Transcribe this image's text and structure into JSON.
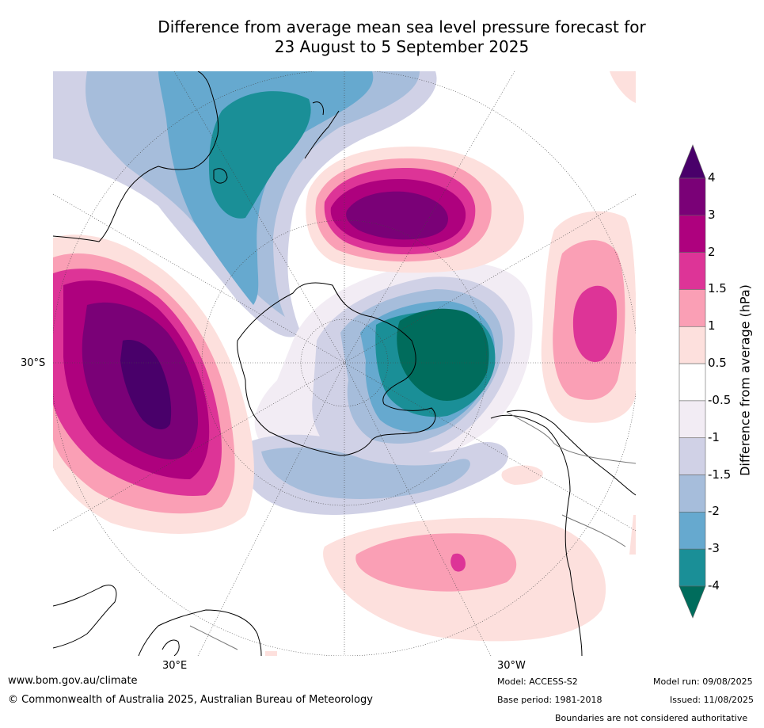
{
  "title": {
    "line1": "Difference from average mean sea level pressure forecast for",
    "line2": "23 August to 5 September 2025"
  },
  "map": {
    "projection": "south-polar-stereographic",
    "lat_label": "30°S",
    "lon_labels": [
      "30°E",
      "30°W"
    ],
    "anomaly_colors": {
      "-4_below": "#006c5c",
      "-4_-3": "#1a8f97",
      "-3_-2": "#66a9cf",
      "-2_-1.5": "#a6bddb",
      "-1.5_-1": "#d0d1e6",
      "-1_-0.5": "#f2ecf4",
      "-0.5_0.5": "#ffffff",
      "0.5_1": "#fde0dd",
      "1_1.5": "#fa9fb5",
      "1.5_2": "#dd3497",
      "2_3": "#ae017e",
      "3_4": "#7a0177",
      "4_above": "#49006a"
    }
  },
  "colorbar": {
    "ticks": [
      "4",
      "3",
      "2",
      "1.5",
      "1",
      "0.5",
      "-0.5",
      "-1",
      "-1.5",
      "-2",
      "-3",
      "-4"
    ],
    "bands": [
      "#7a0177",
      "#ae017e",
      "#dd3497",
      "#fa9fb5",
      "#fde0dd",
      "#ffffff",
      "#f2ecf4",
      "#d0d1e6",
      "#a6bddb",
      "#66a9cf",
      "#1a8f97"
    ],
    "top_arrow_color": "#49006a",
    "bottom_arrow_color": "#006c5c",
    "label": "Difference from average (hPa)"
  },
  "footer": {
    "url": "www.bom.gov.au/climate",
    "copyright": "© Commonwealth of Australia 2025, Australian Bureau of Meteorology",
    "model": "Model: ACCESS-S2",
    "base_period": "Base period: 1981-2018",
    "model_run": "Model run: 09/08/2025",
    "issued": "Issued: 11/08/2025",
    "disclaimer": "Boundaries are not considered authoritative"
  }
}
